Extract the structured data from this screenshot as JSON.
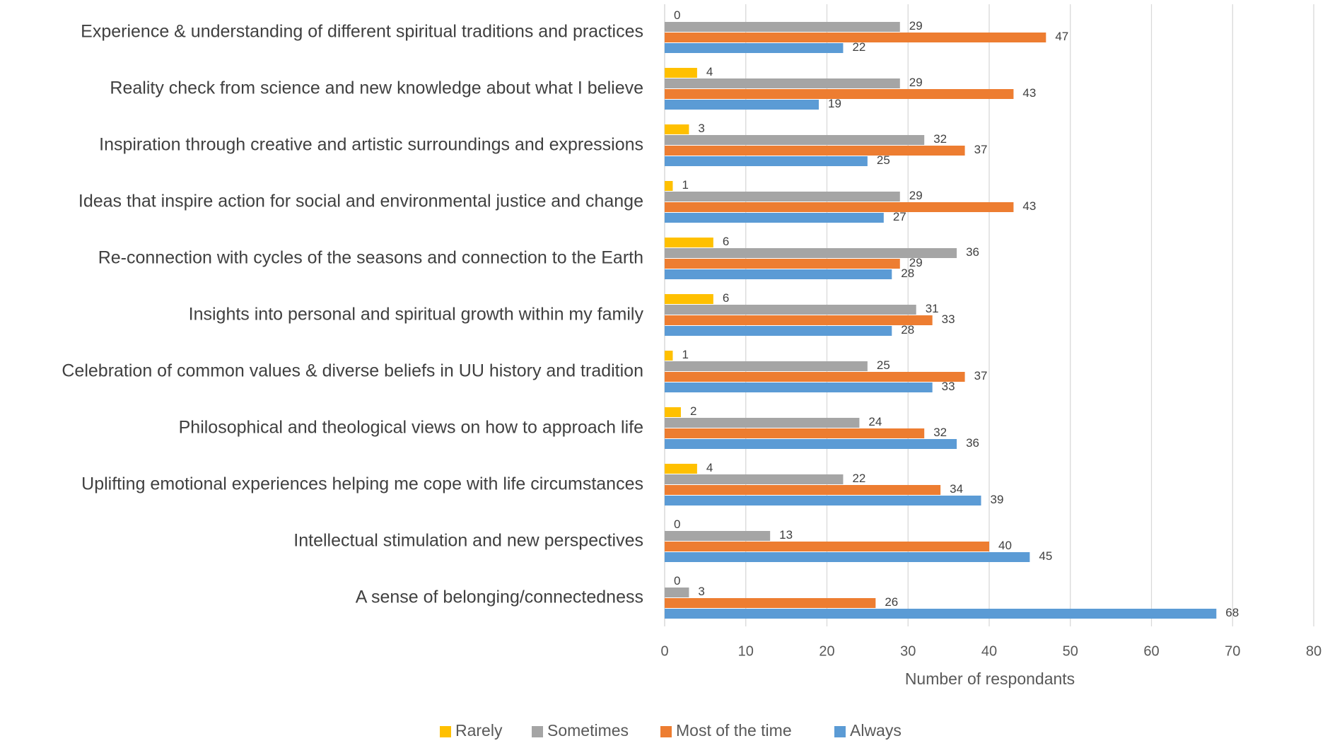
{
  "chart_data": {
    "type": "bar",
    "orientation": "horizontal",
    "categories": [
      "Experience & understanding of different spiritual traditions and practices",
      "Reality check from science and new knowledge about what I believe",
      "Inspiration through creative and artistic surroundings and expressions",
      "Ideas that inspire action for social and environmental justice and change",
      "Re-connection with cycles of the seasons and connection to the Earth",
      "Insights into personal and spiritual growth within my family",
      "Celebration of common values & diverse beliefs in UU history and tradition",
      "Philosophical and theological views on how to approach life",
      "Uplifting emotional experiences helping me cope with life circumstances",
      "Intellectual stimulation and new perspectives",
      "A sense of belonging/connectedness"
    ],
    "series": [
      {
        "name": "Rarely",
        "color": "#ffc000",
        "values": [
          0,
          4,
          3,
          1,
          6,
          6,
          1,
          2,
          4,
          0,
          0
        ]
      },
      {
        "name": "Sometimes",
        "color": "#a5a5a5",
        "values": [
          29,
          29,
          32,
          29,
          36,
          31,
          25,
          24,
          22,
          13,
          3
        ]
      },
      {
        "name": "Most of the time",
        "color": "#ed7d31",
        "values": [
          47,
          43,
          37,
          43,
          29,
          33,
          37,
          32,
          34,
          40,
          26
        ]
      },
      {
        "name": "Always",
        "color": "#5b9bd5",
        "values": [
          22,
          19,
          25,
          27,
          28,
          28,
          33,
          36,
          39,
          45,
          68
        ]
      }
    ],
    "x_label": "Number of respondants",
    "xlim": [
      0,
      80
    ],
    "xticks": [
      0,
      10,
      20,
      30,
      40,
      50,
      60,
      70,
      80
    ],
    "grid": true,
    "legend": "bottom"
  }
}
